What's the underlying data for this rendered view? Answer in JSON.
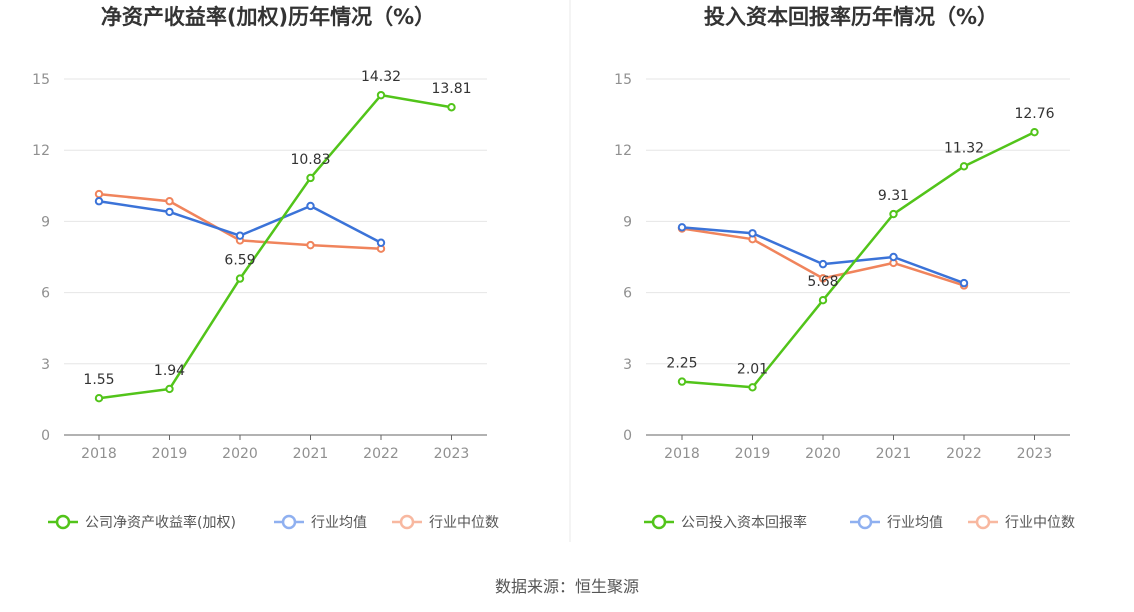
{
  "colors": {
    "company": "#52c41a",
    "industry_avg": "#3b73d8",
    "industry_median": "#f0845c",
    "legend_avg": "#8fb0f0",
    "legend_median": "#f8b8a0",
    "grid": "#e6e6e6",
    "axis": "#666666",
    "divider": "#e8e8e8"
  },
  "source": "数据来源：恒生聚源",
  "chart_data": [
    {
      "type": "line",
      "title": "净资产收益率(加权)历年情况（%）",
      "categories": [
        "2018",
        "2019",
        "2020",
        "2021",
        "2022",
        "2023"
      ],
      "ylim": [
        0,
        15
      ],
      "yticks": [
        "0",
        "3",
        "6",
        "9",
        "12",
        "15"
      ],
      "grid": true,
      "legend_position": "bottom",
      "series": [
        {
          "name": "公司净资产收益率(加权)",
          "values": [
            1.55,
            1.94,
            6.59,
            10.83,
            14.32,
            13.81
          ],
          "labels": [
            "1.55",
            "1.94",
            "6.59",
            "10.83",
            "14.32",
            "13.81"
          ]
        },
        {
          "name": "行业均值",
          "values": [
            9.85,
            9.4,
            8.4,
            9.65,
            8.1,
            null
          ]
        },
        {
          "name": "行业中位数",
          "values": [
            10.15,
            9.85,
            8.2,
            8.0,
            7.85,
            null
          ]
        }
      ]
    },
    {
      "type": "line",
      "title": "投入资本回报率历年情况（%）",
      "categories": [
        "2018",
        "2019",
        "2020",
        "2021",
        "2022",
        "2023"
      ],
      "ylim": [
        0,
        15
      ],
      "yticks": [
        "0",
        "3",
        "6",
        "9",
        "12",
        "15"
      ],
      "grid": true,
      "legend_position": "bottom",
      "series": [
        {
          "name": "公司投入资本回报率",
          "values": [
            2.25,
            2.01,
            5.68,
            9.31,
            11.32,
            12.76
          ],
          "labels": [
            "2.25",
            "2.01",
            "5.68",
            "9.31",
            "11.32",
            "12.76"
          ]
        },
        {
          "name": "行业均值",
          "values": [
            8.75,
            8.5,
            7.2,
            7.5,
            6.4,
            null
          ]
        },
        {
          "name": "行业中位数",
          "values": [
            8.7,
            8.25,
            6.6,
            7.25,
            6.3,
            null
          ]
        }
      ]
    }
  ]
}
